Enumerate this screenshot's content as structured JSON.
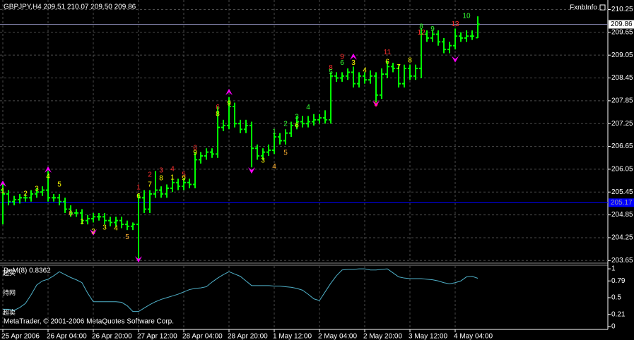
{
  "chart_data": {
    "type": "ohlc",
    "title": "GBPJPY,H4  209.51 210.07 209.50 209.86",
    "label": "FxnbInfo",
    "categories": [
      "25 Apr 2006",
      null,
      null,
      null,
      null,
      null,
      null,
      null,
      "26 Apr 04:00",
      null,
      null,
      null,
      null,
      null,
      null,
      null,
      "26 Apr 20:00",
      null,
      null,
      null,
      null,
      null,
      null,
      null,
      "27 Apr 12:00",
      null,
      null,
      null,
      null,
      null,
      null,
      null,
      "28 Apr 04:00",
      null,
      null,
      null,
      null,
      null,
      null,
      null,
      "28 Apr 20:00",
      null,
      null,
      null,
      null,
      null,
      null,
      null,
      "1 May 12:00",
      null,
      null,
      null,
      null,
      null,
      null,
      null,
      "2 May 04:00",
      null,
      null,
      null,
      null,
      null,
      null,
      null,
      "2 May 20:00",
      null,
      null,
      null,
      null,
      null,
      null,
      null,
      "3 May 12:00",
      null,
      null,
      null,
      null,
      null,
      null,
      null,
      "4 May 04:00",
      null,
      null,
      null,
      null
    ],
    "open": [
      205.5,
      205.4,
      205.2,
      205.25,
      205.3,
      205.3,
      205.4,
      205.45,
      205.5,
      205.3,
      205.3,
      205.2,
      205.0,
      204.9,
      204.9,
      204.7,
      204.75,
      204.8,
      204.8,
      204.7,
      204.65,
      204.7,
      204.6,
      204.55,
      204.6,
      205.3,
      205.0,
      205.4,
      205.5,
      205.4,
      205.55,
      205.7,
      205.6,
      205.7,
      205.65,
      206.3,
      206.4,
      206.5,
      206.45,
      207.15,
      207.2,
      207.7,
      207.25,
      207.1,
      207.2,
      206.6,
      206.4,
      206.5,
      206.55,
      206.9,
      206.8,
      207.0,
      207.2,
      207.3,
      207.25,
      207.3,
      207.35,
      207.4,
      207.35,
      208.5,
      208.45,
      208.5,
      208.6,
      208.3,
      208.5,
      208.4,
      208.5,
      208.0,
      208.55,
      208.75,
      208.7,
      208.3,
      208.7,
      208.5,
      208.7,
      209.6,
      209.5,
      209.6,
      209.4,
      209.2,
      209.3,
      209.55,
      209.5,
      209.55,
      209.51
    ],
    "high": [
      205.7,
      205.5,
      205.35,
      205.4,
      205.4,
      205.5,
      205.55,
      205.6,
      206.0,
      205.4,
      205.4,
      205.3,
      205.1,
      205.0,
      205.0,
      204.85,
      204.9,
      204.9,
      204.9,
      204.8,
      204.8,
      204.8,
      204.7,
      204.65,
      205.4,
      205.5,
      205.5,
      206.0,
      205.6,
      205.65,
      205.8,
      205.8,
      205.8,
      205.8,
      206.5,
      206.5,
      206.6,
      206.6,
      207.7,
      207.35,
      207.95,
      207.8,
      207.35,
      207.35,
      207.3,
      206.7,
      206.6,
      206.7,
      207.0,
      207.0,
      207.1,
      207.3,
      207.45,
      207.45,
      207.45,
      207.5,
      207.5,
      207.6,
      208.6,
      208.6,
      208.6,
      208.7,
      208.75,
      208.6,
      208.6,
      208.65,
      208.6,
      208.7,
      208.9,
      208.85,
      208.8,
      208.8,
      208.8,
      208.8,
      209.75,
      209.7,
      209.7,
      209.7,
      209.5,
      209.4,
      209.75,
      209.65,
      209.7,
      209.7,
      210.07
    ],
    "low": [
      204.6,
      205.1,
      205.1,
      205.15,
      205.2,
      205.2,
      205.3,
      205.35,
      205.2,
      205.2,
      205.1,
      204.9,
      204.8,
      204.8,
      204.6,
      204.6,
      204.65,
      204.7,
      204.6,
      204.55,
      204.55,
      204.5,
      204.45,
      204.45,
      203.65,
      204.9,
      204.9,
      205.3,
      205.3,
      205.3,
      205.45,
      205.5,
      205.5,
      205.55,
      205.55,
      206.2,
      206.3,
      206.35,
      206.35,
      207.05,
      207.1,
      207.15,
      207.0,
      207.0,
      206.1,
      206.3,
      206.3,
      206.4,
      206.45,
      206.7,
      206.7,
      206.9,
      207.1,
      207.15,
      207.15,
      207.2,
      207.25,
      207.25,
      207.25,
      208.35,
      208.35,
      208.4,
      208.2,
      208.2,
      208.3,
      208.3,
      207.8,
      207.9,
      208.45,
      208.6,
      208.2,
      208.2,
      208.4,
      208.4,
      208.45,
      209.4,
      209.4,
      209.3,
      209.1,
      209.1,
      209.2,
      209.4,
      209.4,
      209.45,
      209.5
    ],
    "close": [
      205.4,
      205.2,
      205.25,
      205.3,
      205.3,
      205.4,
      205.45,
      205.5,
      205.3,
      205.3,
      205.2,
      205.0,
      204.9,
      204.9,
      204.7,
      204.75,
      204.8,
      204.8,
      204.7,
      204.65,
      204.7,
      204.6,
      204.55,
      204.6,
      205.3,
      205.0,
      205.4,
      205.5,
      205.4,
      205.55,
      205.7,
      205.6,
      205.7,
      205.65,
      206.3,
      206.4,
      206.5,
      206.45,
      207.15,
      207.2,
      207.7,
      207.25,
      207.1,
      207.2,
      206.6,
      206.4,
      206.5,
      206.55,
      206.9,
      206.8,
      207.0,
      207.2,
      207.3,
      207.25,
      207.3,
      207.35,
      207.4,
      207.35,
      208.5,
      208.45,
      208.5,
      208.6,
      208.3,
      208.5,
      208.4,
      208.5,
      208.0,
      208.55,
      208.75,
      208.7,
      208.3,
      208.7,
      208.5,
      208.7,
      209.6,
      209.5,
      209.6,
      209.4,
      209.2,
      209.3,
      209.55,
      209.5,
      209.55,
      209.55,
      209.86
    ],
    "color": "#00ff00",
    "ylim": [
      203.6,
      210.5
    ],
    "yticks": [
      210.25,
      209.65,
      209.05,
      208.45,
      207.85,
      207.25,
      206.65,
      206.05,
      205.45,
      204.85,
      204.25,
      203.65
    ],
    "grid": true,
    "current_price": 209.86,
    "horizontal_line": {
      "value": 205.17,
      "label": "205.17",
      "color": "#0000ff"
    },
    "annotations": [
      {
        "text": "10",
        "bar": 82,
        "price": 210.08,
        "color": "#33ff33"
      },
      {
        "text": "8",
        "bar": 74,
        "price": 209.8,
        "color": "#33ff33"
      },
      {
        "text": "9",
        "bar": 76,
        "price": 209.73,
        "color": "#33ff33"
      },
      {
        "text": "12",
        "bar": 74,
        "price": 209.64,
        "color": "#ff3030"
      },
      {
        "text": "13",
        "bar": 80,
        "price": 209.86,
        "color": "#ff3030"
      },
      {
        "text": "11",
        "bar": 68,
        "price": 209.12,
        "color": "#ff3030"
      },
      {
        "text": "9",
        "bar": 60,
        "price": 209.0,
        "color": "#ff3030"
      },
      {
        "text": "8",
        "bar": 58,
        "price": 208.71,
        "color": "#ff3030"
      },
      {
        "text": "6",
        "bar": 60,
        "price": 208.84,
        "color": "#33ff33"
      },
      {
        "text": "5",
        "bar": 58,
        "price": 208.6,
        "color": "#33ff33"
      },
      {
        "text": "3",
        "bar": 62,
        "price": 208.84,
        "color": "#ffff00"
      },
      {
        "text": "4",
        "bar": 64,
        "price": 208.65,
        "color": "#ffff00"
      },
      {
        "text": "6",
        "bar": 68,
        "price": 208.87,
        "color": "#ffff00"
      },
      {
        "text": "7",
        "bar": 70,
        "price": 208.73,
        "color": "#ffff00"
      },
      {
        "text": "8",
        "bar": 72,
        "price": 208.91,
        "color": "#ffff00"
      },
      {
        "text": "5",
        "bar": 66,
        "price": 207.76,
        "color": "#ff3030"
      },
      {
        "text": "4",
        "bar": 54,
        "price": 207.67,
        "color": "#33ff33"
      },
      {
        "text": "3",
        "bar": 52,
        "price": 207.42,
        "color": "#33ff33"
      },
      {
        "text": "2",
        "bar": 50,
        "price": 207.24,
        "color": "#33ff33"
      },
      {
        "text": "1",
        "bar": 48,
        "price": 207.03,
        "color": "#33ff33"
      },
      {
        "text": "6",
        "bar": 52,
        "price": 207.2,
        "color": "#ffff00"
      },
      {
        "text": "5",
        "bar": 50,
        "price": 206.48,
        "color": "#ffb030"
      },
      {
        "text": "4",
        "bar": 48,
        "price": 206.12,
        "color": "#ffb030"
      },
      {
        "text": "3",
        "bar": 46,
        "price": 206.27,
        "color": "#ffff00"
      },
      {
        "text": "6",
        "bar": 38,
        "price": 207.67,
        "color": "#ff3030"
      },
      {
        "text": "9",
        "bar": 40,
        "price": 207.78,
        "color": "#ffff00"
      },
      {
        "text": "8",
        "bar": 38,
        "price": 207.5,
        "color": "#ffff00"
      },
      {
        "text": "6",
        "bar": 34,
        "price": 206.61,
        "color": "#ff3030"
      },
      {
        "text": "9",
        "bar": 34,
        "price": 206.48,
        "color": "#ffff00"
      },
      {
        "text": "1",
        "bar": 24,
        "price": 205.57,
        "color": "#ff3030"
      },
      {
        "text": "2",
        "bar": 26,
        "price": 205.9,
        "color": "#ff3030"
      },
      {
        "text": "3",
        "bar": 28,
        "price": 206.01,
        "color": "#ff3030"
      },
      {
        "text": "4",
        "bar": 30,
        "price": 206.05,
        "color": "#ff3030"
      },
      {
        "text": "5",
        "bar": 32,
        "price": 205.9,
        "color": "#ff3030"
      },
      {
        "text": "7",
        "bar": 26,
        "price": 205.64,
        "color": "#ffff00"
      },
      {
        "text": "8",
        "bar": 28,
        "price": 205.81,
        "color": "#ffff00"
      },
      {
        "text": "1",
        "bar": 30,
        "price": 205.83,
        "color": "#ffff00"
      },
      {
        "text": "9",
        "bar": 32,
        "price": 205.81,
        "color": "#ffff00"
      },
      {
        "text": "6",
        "bar": 24,
        "price": 205.34,
        "color": "#ffff00"
      },
      {
        "text": "1",
        "bar": 0,
        "price": 205.47,
        "color": "#ffff00"
      },
      {
        "text": "2",
        "bar": 4,
        "price": 205.4,
        "color": "#ffff00"
      },
      {
        "text": "3",
        "bar": 6,
        "price": 205.53,
        "color": "#ffff00"
      },
      {
        "text": "4",
        "bar": 8,
        "price": 205.86,
        "color": "#ffff00"
      },
      {
        "text": "5",
        "bar": 10,
        "price": 205.64,
        "color": "#ffff00"
      },
      {
        "text": "6",
        "bar": 12,
        "price": 204.88,
        "color": "#ffb030"
      },
      {
        "text": "1",
        "bar": 14,
        "price": 204.67,
        "color": "#ffff00"
      },
      {
        "text": "2",
        "bar": 16,
        "price": 204.41,
        "color": "#ffff00"
      },
      {
        "text": "3",
        "bar": 18,
        "price": 204.51,
        "color": "#ffff00"
      },
      {
        "text": "4",
        "bar": 20,
        "price": 204.49,
        "color": "#ffff00"
      },
      {
        "text": "5",
        "bar": 22,
        "price": 204.26,
        "color": "#ffb030"
      }
    ],
    "arrows": [
      {
        "bar": 0,
        "price": 205.68,
        "direction": "up"
      },
      {
        "bar": 8,
        "price": 206.05,
        "direction": "up"
      },
      {
        "bar": 16,
        "price": 204.38,
        "direction": "down"
      },
      {
        "bar": 24,
        "price": 203.67,
        "direction": "down"
      },
      {
        "bar": 40,
        "price": 208.09,
        "direction": "up"
      },
      {
        "bar": 44,
        "price": 206.01,
        "direction": "down"
      },
      {
        "bar": 62,
        "price": 209.02,
        "direction": "up"
      },
      {
        "bar": 66,
        "price": 207.76,
        "direction": "down"
      },
      {
        "bar": 80,
        "price": 208.93,
        "direction": "down"
      }
    ],
    "arrow_color": "#ff00ff",
    "indicator": {
      "type": "line",
      "title": "DeM(8) 0.8362",
      "color": "#4fb0c8",
      "ylim": [
        -0.05,
        1.05
      ],
      "yticks": [
        1,
        0.79,
        0.5,
        0.21,
        0
      ],
      "values": [
        0.3,
        0.3,
        0.28,
        0.33,
        0.4,
        0.55,
        0.72,
        0.79,
        0.82,
        0.88,
        0.95,
        0.9,
        0.85,
        0.81,
        0.76,
        0.58,
        0.43,
        0.43,
        0.43,
        0.43,
        0.43,
        0.42,
        0.36,
        0.26,
        0.26,
        0.32,
        0.38,
        0.43,
        0.47,
        0.5,
        0.53,
        0.56,
        0.6,
        0.64,
        0.66,
        0.67,
        0.69,
        0.77,
        0.84,
        0.9,
        0.95,
        0.91,
        0.87,
        0.79,
        0.71,
        0.71,
        0.71,
        0.71,
        0.7,
        0.7,
        0.69,
        0.68,
        0.66,
        0.63,
        0.56,
        0.48,
        0.45,
        0.6,
        0.75,
        0.88,
        0.98,
        0.99,
        0.99,
        1.0,
        1.0,
        0.98,
        0.98,
        0.99,
        1.0,
        0.93,
        0.86,
        0.84,
        0.83,
        0.83,
        0.83,
        0.82,
        0.81,
        0.79,
        0.76,
        0.74,
        0.76,
        0.79,
        0.86,
        0.87,
        0.8362
      ],
      "zone_labels": [
        {
          "text": "超买",
          "value": 0.92
        },
        {
          "text": "持网",
          "value": 0.58
        },
        {
          "text": "超卖",
          "value": 0.24
        }
      ]
    },
    "copyright": "MetaTrader, © 2001-2006 MetaQuotes Software Corp."
  }
}
